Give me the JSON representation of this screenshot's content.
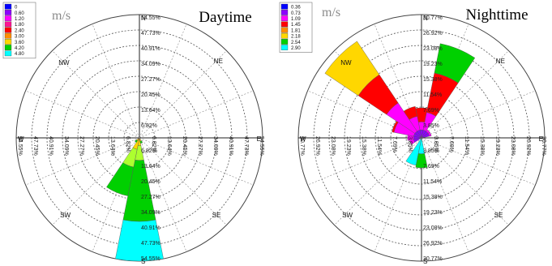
{
  "chart_data": [
    {
      "type": "windrose",
      "title": "Daytime",
      "unit_label": "m/s",
      "directions": {
        "N": "N",
        "NE": "NE",
        "E": "E",
        "SE": "SE",
        "S": "S",
        "SW": "SW",
        "W": "W",
        "NW": "NW"
      },
      "rings": [
        "6.82%",
        "13.64%",
        "20.45%",
        "27.27%",
        "34.09%",
        "40.91%",
        "47.73%",
        "54.55%"
      ],
      "rmax": 54.55,
      "legend": {
        "labels": [
          "0",
          "0.60",
          "1.20",
          "1.80",
          "2.40",
          "3.00",
          "3.60",
          "4.20",
          "4.80"
        ],
        "colors": [
          "#0000ff",
          "#8b00ff",
          "#ff00ff",
          "#ff1493",
          "#ff0000",
          "#ff8c00",
          "#ffd700",
          "#00d000",
          "#00ffff"
        ]
      },
      "sectors": [
        {
          "direction": "S",
          "bands": [
            {
              "color": "#ff8c00",
              "value": 1.0
            },
            {
              "color": "#ffd700",
              "value": 2.5
            },
            {
              "color": "#adff2f",
              "value": 6.5
            },
            {
              "color": "#00d000",
              "value": 27.0
            },
            {
              "color": "#00ffff",
              "value": 17.55
            }
          ]
        },
        {
          "direction": "SSW",
          "bands": [
            {
              "color": "#ff8c00",
              "value": 1.2
            },
            {
              "color": "#ffd700",
              "value": 4.0
            },
            {
              "color": "#adff2f",
              "value": 8.0
            },
            {
              "color": "#00d000",
              "value": 13.0
            }
          ]
        },
        {
          "direction": "SW",
          "bands": [
            {
              "color": "#ffd700",
              "value": 1.5
            },
            {
              "color": "#00d000",
              "value": 1.0
            }
          ]
        },
        {
          "direction": "SSE",
          "bands": [
            {
              "color": "#ffd700",
              "value": 1.5
            },
            {
              "color": "#00d000",
              "value": 1.0
            }
          ]
        }
      ]
    },
    {
      "type": "windrose",
      "title": "Nighttime",
      "unit_label": "m/s",
      "directions": {
        "N": "N",
        "NE": "NE",
        "E": "E",
        "SE": "SE",
        "S": "S",
        "SW": "SW",
        "W": "W",
        "NW": "NW"
      },
      "rings": [
        "3.85%",
        "7.69%",
        "11.54%",
        "15.38%",
        "19.23%",
        "23.08%",
        "26.92%",
        "30.77%"
      ],
      "rmax": 30.77,
      "legend": {
        "labels": [
          "0.36",
          "0.73",
          "1.09",
          "1.45",
          "1.81",
          "2.18",
          "2.54",
          "2.90"
        ],
        "colors": [
          "#0000ff",
          "#8b00ff",
          "#ff00ff",
          "#ff0000",
          "#ff8c00",
          "#ffd700",
          "#00d000",
          "#00ffff"
        ]
      },
      "sectors": [
        {
          "direction": "NW",
          "bands": [
            {
              "color": "#8b00ff",
              "value": 2.0
            },
            {
              "color": "#ff00ff",
              "value": 8.5
            },
            {
              "color": "#ff0000",
              "value": 8.5
            },
            {
              "color": "#ffd700",
              "value": 10.0
            }
          ]
        },
        {
          "direction": "NNE",
          "bands": [
            {
              "color": "#8b00ff",
              "value": 2.0
            },
            {
              "color": "#ff00ff",
              "value": 4.5
            },
            {
              "color": "#ff0000",
              "value": 10.0
            },
            {
              "color": "#00d000",
              "value": 7.5
            }
          ]
        },
        {
          "direction": "N",
          "bands": [
            {
              "color": "#8b00ff",
              "value": 2.0
            },
            {
              "color": "#ff00ff",
              "value": 2.0
            },
            {
              "color": "#ff0000",
              "value": 3.5
            }
          ]
        },
        {
          "direction": "NNW",
          "bands": [
            {
              "color": "#8b00ff",
              "value": 2.0
            },
            {
              "color": "#ff00ff",
              "value": 3.5
            },
            {
              "color": "#ff0000",
              "value": 2.5
            }
          ]
        },
        {
          "direction": "WNW",
          "bands": [
            {
              "color": "#8b00ff",
              "value": 2.0
            },
            {
              "color": "#ff00ff",
              "value": 5.0
            },
            {
              "color": "#ff0000",
              "value": 0.5
            }
          ]
        },
        {
          "direction": "W",
          "bands": [
            {
              "color": "#8b00ff",
              "value": 2.0
            },
            {
              "color": "#ff00ff",
              "value": 1.5
            }
          ]
        },
        {
          "direction": "WSW",
          "bands": [
            {
              "color": "#8b00ff",
              "value": 2.0
            },
            {
              "color": "#ff00ff",
              "value": 1.0
            }
          ]
        },
        {
          "direction": "NE",
          "bands": [
            {
              "color": "#8b00ff",
              "value": 2.0
            },
            {
              "color": "#ff00ff",
              "value": 0.5
            }
          ]
        },
        {
          "direction": "ENE",
          "bands": [
            {
              "color": "#8b00ff",
              "value": 2.0
            },
            {
              "color": "#ff00ff",
              "value": 0.5
            }
          ]
        },
        {
          "direction": "SSW",
          "bands": [
            {
              "color": "#00ffff",
              "value": 7.0
            }
          ]
        },
        {
          "direction": "S",
          "bands": [
            {
              "color": "#00ffff",
              "value": 4.0
            },
            {
              "color": "#00d000",
              "value": 3.5
            }
          ]
        }
      ]
    }
  ]
}
